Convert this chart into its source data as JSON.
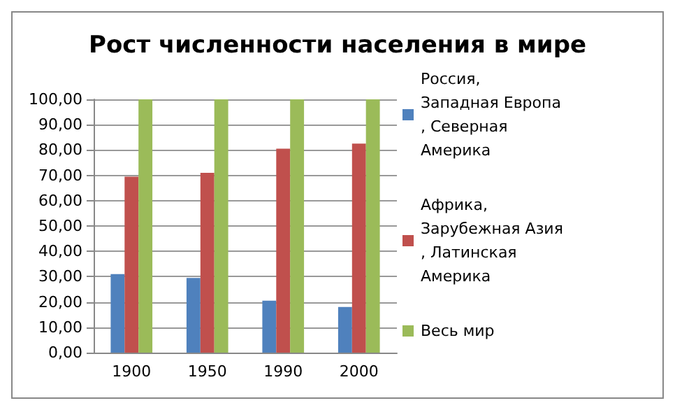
{
  "chart_data": {
    "type": "bar",
    "title": "Рост численности населения в мире",
    "categories": [
      "1900",
      "1950",
      "1990",
      "2000"
    ],
    "series": [
      {
        "name": "Россия, Западная Европа, Северная Америка",
        "color": "#4f81bd",
        "values": [
          31,
          29.5,
          20.5,
          18
        ]
      },
      {
        "name": "Африка, Зарубежная Азия, Латинская Америка",
        "color": "#c0504d",
        "values": [
          69.5,
          71,
          80.5,
          82.5
        ]
      },
      {
        "name": "Весь мир",
        "color": "#9bbb59",
        "values": [
          100,
          100,
          100,
          100
        ]
      }
    ],
    "ylim": [
      0,
      100
    ],
    "yticks": [
      {
        "value": 0,
        "label": "0,00"
      },
      {
        "value": 10,
        "label": "10,00"
      },
      {
        "value": 20,
        "label": "20,00"
      },
      {
        "value": 30,
        "label": "30,00"
      },
      {
        "value": 40,
        "label": "40,00"
      },
      {
        "value": 50,
        "label": "50,00"
      },
      {
        "value": 60,
        "label": "60,00"
      },
      {
        "value": 70,
        "label": "70,00"
      },
      {
        "value": 80,
        "label": "80,00"
      },
      {
        "value": 90,
        "label": "90,00"
      },
      {
        "value": 100,
        "label": "100,00"
      }
    ],
    "grid": "y",
    "legend": "right"
  }
}
